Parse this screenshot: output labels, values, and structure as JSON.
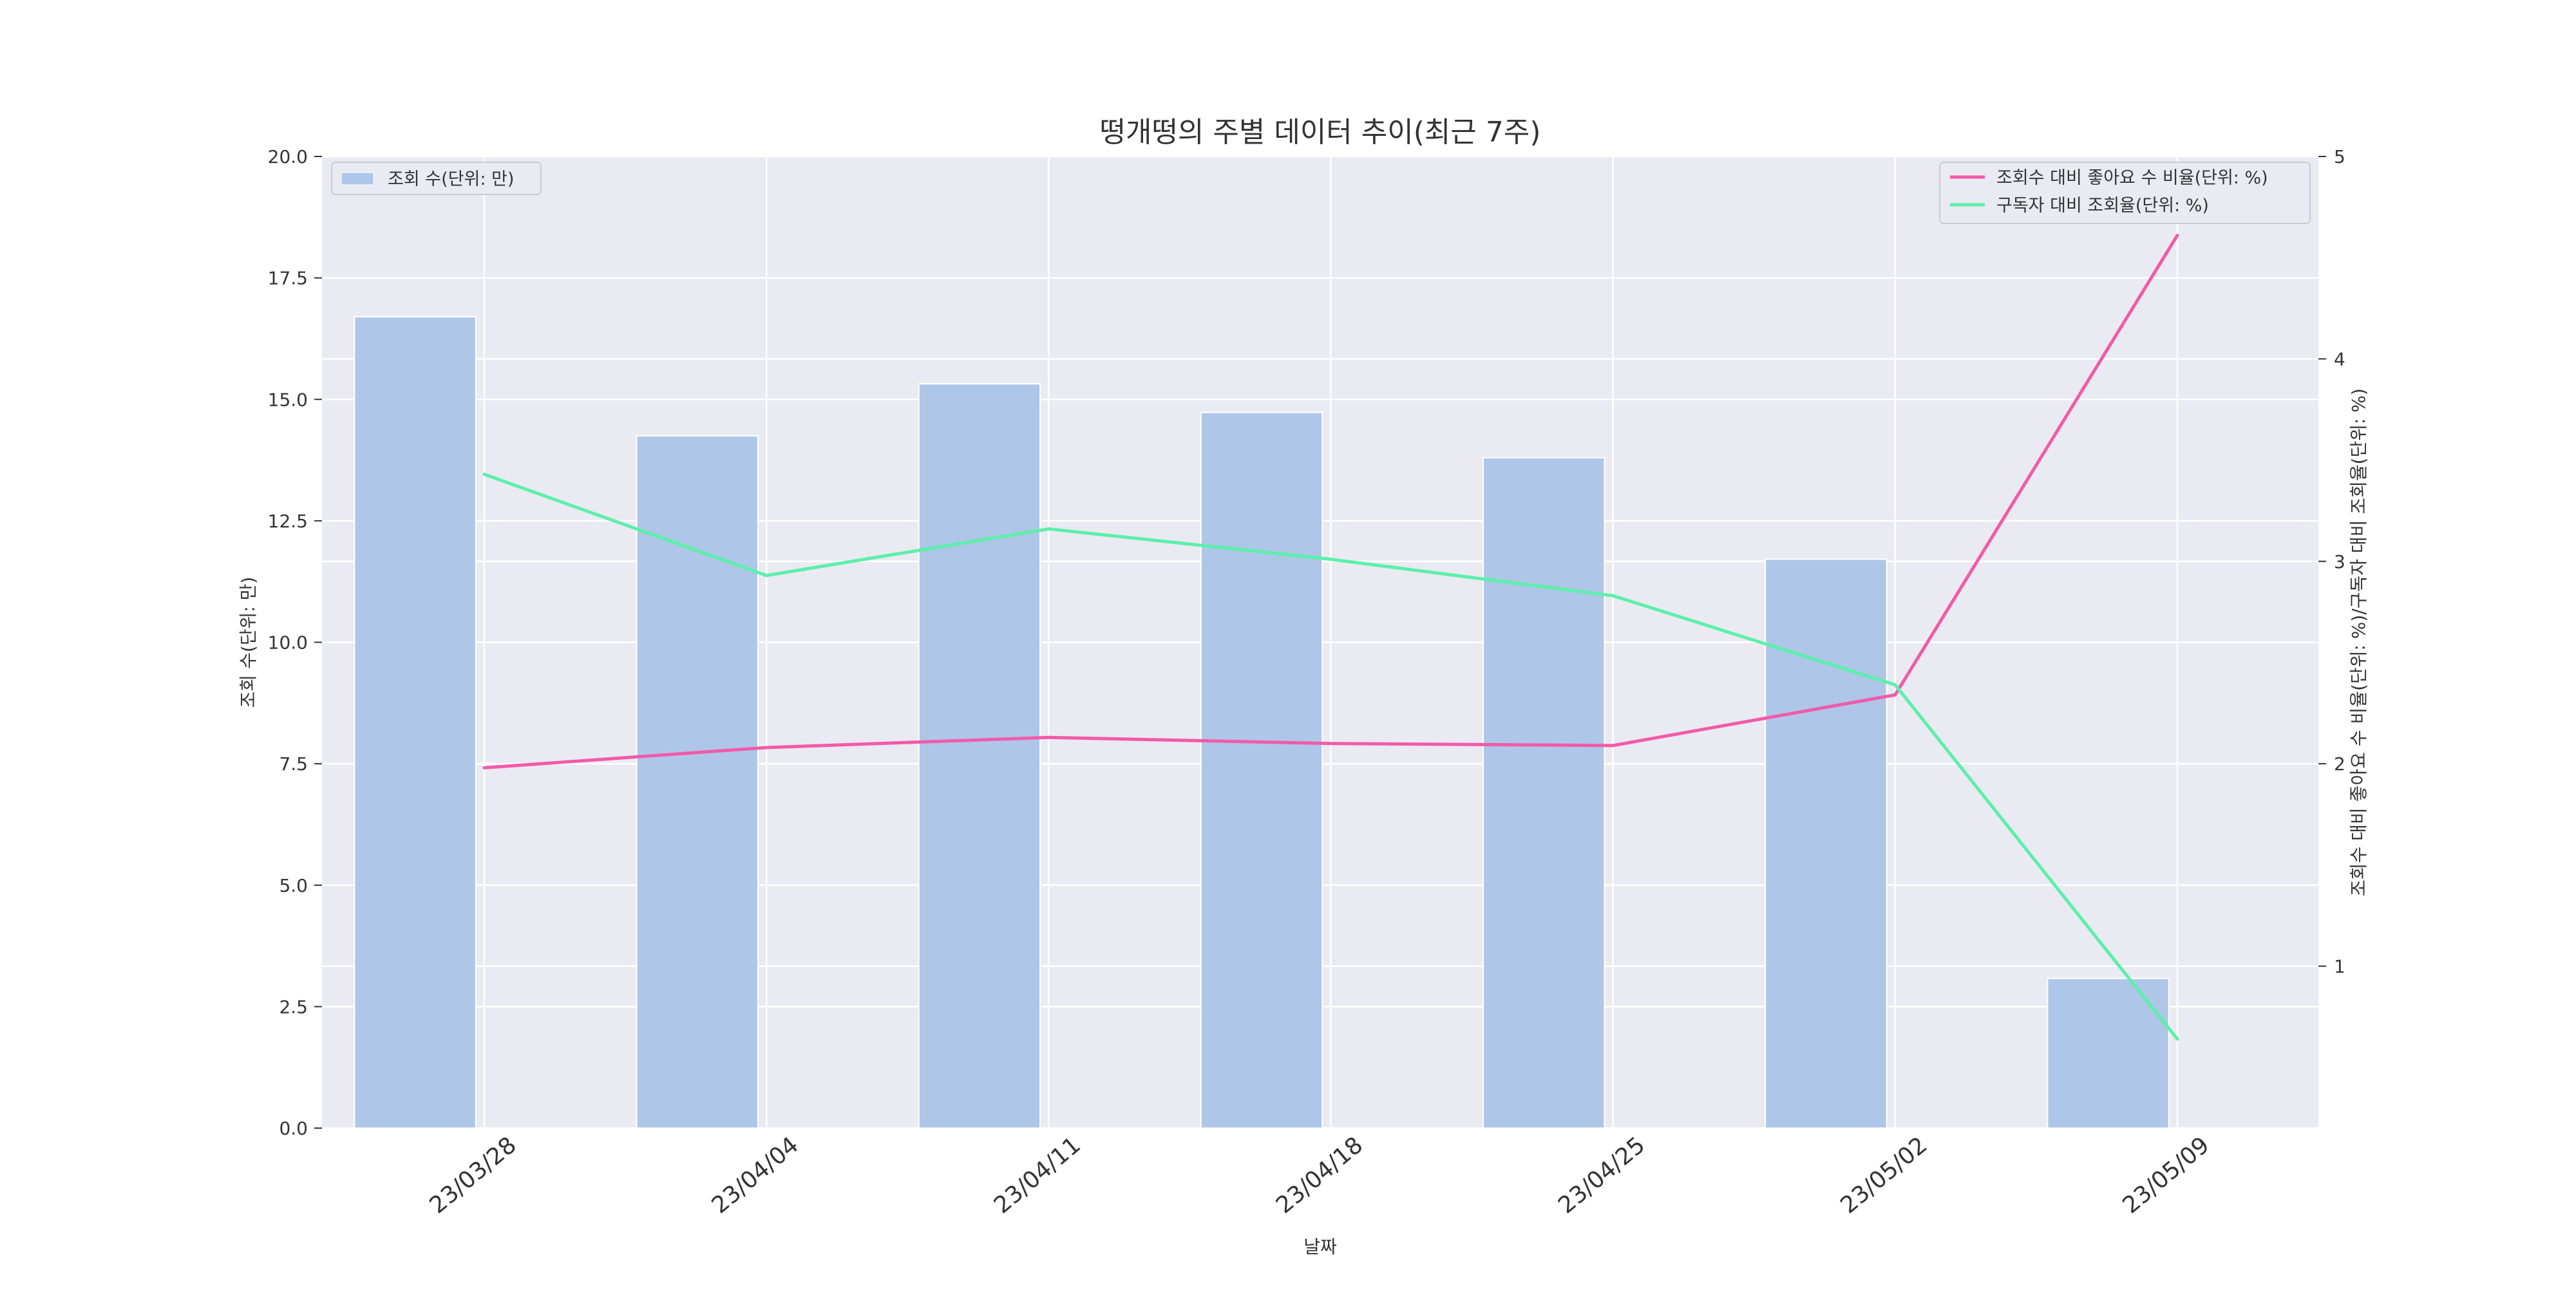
{
  "colors": {
    "background": "#eaeaf2",
    "grid": "#ffffff",
    "bar": "#aec6e8",
    "like_ratio_line": "#f25aa8",
    "view_rate_line": "#5bf0aa"
  },
  "chart_data": {
    "type": "bar",
    "title": "떵개떵의 주별 데이터 추이(최근 7주)",
    "xlabel": "날짜",
    "ylabel_left": "조회 수(단위: 만)",
    "ylabel_right": "조회수 대비 좋아요 수 비율(단위: %)/구독자 대비 조회율(단위: %)",
    "categories": [
      "23/03/28",
      "23/04/04",
      "23/04/11",
      "23/04/18",
      "23/04/25",
      "23/05/02",
      "23/05/09"
    ],
    "ylim_left": [
      0,
      20
    ],
    "yticks_left": [
      "0.0",
      "2.5",
      "5.0",
      "7.5",
      "10.0",
      "12.5",
      "15.0",
      "17.5",
      "20.0"
    ],
    "ylim_right": [
      0.2,
      5
    ],
    "yticks_right": [
      "1",
      "2",
      "3",
      "4",
      "5"
    ],
    "grid": true,
    "series": [
      {
        "name": "조회 수(단위: 만)",
        "type": "bar",
        "axis": "left",
        "values": [
          16.7,
          14.25,
          15.32,
          14.73,
          13.8,
          11.71,
          3.08
        ]
      },
      {
        "name": "조회수 대비 좋아요 수 비율(단위: %)",
        "type": "line",
        "axis": "right",
        "values": [
          1.98,
          2.08,
          2.13,
          2.1,
          2.09,
          2.34,
          4.61
        ]
      },
      {
        "name": "구독자 대비 조회율(단위: %)",
        "type": "line",
        "axis": "right",
        "values": [
          3.43,
          2.93,
          3.16,
          3.01,
          2.83,
          2.39,
          0.64
        ]
      }
    ],
    "legend_left_position": "top-left",
    "legend_right_position": "top-right"
  }
}
